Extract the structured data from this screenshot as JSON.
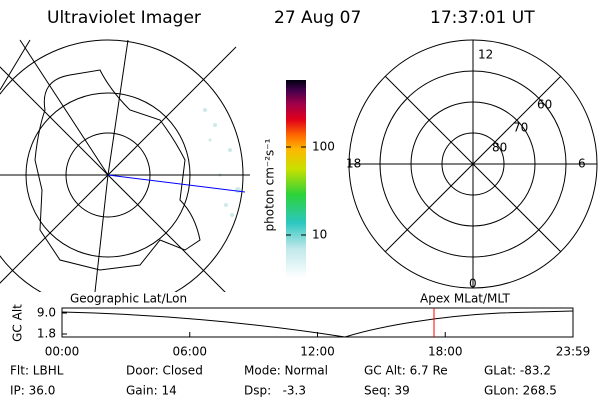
{
  "header": {
    "title": "Ultraviolet Imager",
    "date": "27 Aug 07",
    "time": "17:37:01 UT"
  },
  "colorbar": {
    "label": "photon cm⁻²s⁻¹",
    "ticks": [
      10,
      100
    ],
    "log_scale": true
  },
  "left_map": {
    "label": "Geographic Lat/Lon"
  },
  "right_map": {
    "label": "Apex MLat/MLT",
    "mlt_labels": [
      "12",
      "18",
      "6",
      "0"
    ],
    "lat_labels": [
      "60",
      "70",
      "80"
    ]
  },
  "altitude_plot": {
    "ylabel": "GC Alt",
    "yticks": [
      {
        "value": 9,
        "label": "9.0"
      },
      1.8
    ],
    "xtick_labels": [
      "00:00",
      "06:00",
      "12:00",
      "18:00",
      "23:59"
    ]
  },
  "footer": {
    "rows": [
      [
        "Flt: LBHL",
        "Door: Closed",
        "Mode: Normal",
        "GC Alt: 6.7 Re",
        "GLat: -83.2"
      ],
      [
        "IP: 36.0",
        "Gain: 14",
        "Dsp:   -3.3",
        "Seq: 39",
        "GLon: 268.5"
      ]
    ]
  }
}
